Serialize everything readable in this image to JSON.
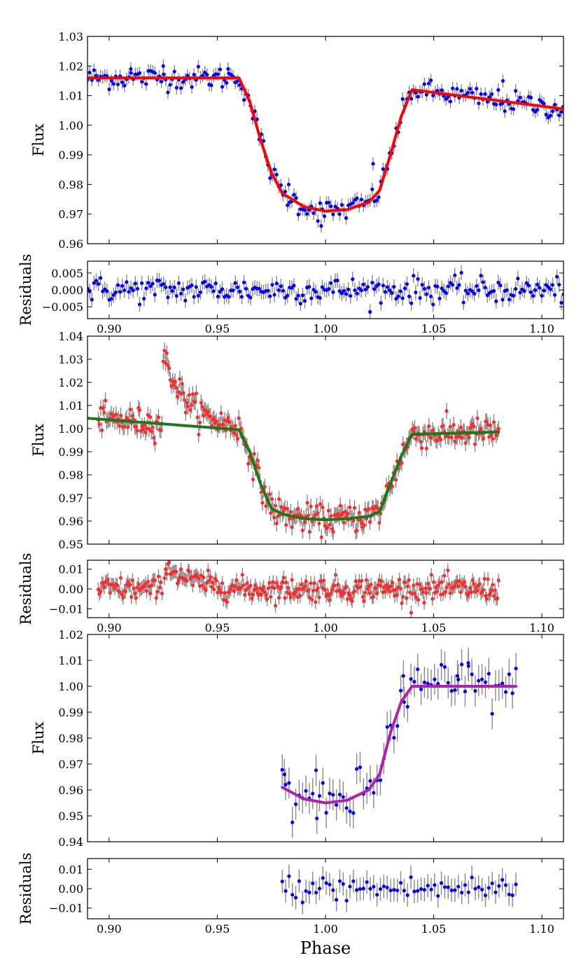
{
  "figure": {
    "x_axis_label": "Phase",
    "x_ticks": [
      "0.90",
      "0.95",
      "1.00",
      "1.05",
      "1.10"
    ]
  },
  "chart_data": [
    {
      "type": "scatter",
      "panel": "flux-1",
      "ylabel": "Flux",
      "xlim": [
        0.89,
        1.11
      ],
      "ylim": [
        0.96,
        1.03
      ],
      "yticks": [
        "0.96",
        "0.97",
        "0.98",
        "0.99",
        "1.00",
        "1.01",
        "1.02",
        "1.03"
      ],
      "xticks_shown": false,
      "points_color": "#0000ff",
      "errorbar_color": "#888888",
      "model_color": "#ff0000",
      "model": {
        "x": [
          0.89,
          0.96,
          0.965,
          0.97,
          0.975,
          0.98,
          0.99,
          1.0,
          1.01,
          1.02,
          1.025,
          1.03,
          1.035,
          1.04,
          1.11
        ],
        "y": [
          1.016,
          1.016,
          1.008,
          0.995,
          0.984,
          0.977,
          0.9725,
          0.971,
          0.9715,
          0.974,
          0.978,
          0.99,
          1.003,
          1.012,
          1.0055
        ]
      },
      "data": {
        "x_start": 0.89,
        "x_end": 1.11,
        "n": 220,
        "yerr": 0.0022,
        "outliers": [
          {
            "x": 0.91,
            "y": 1.019
          },
          {
            "x": 0.925,
            "y": 1.02
          },
          {
            "x": 0.955,
            "y": 1.019
          },
          {
            "x": 0.983,
            "y": 0.98
          },
          {
            "x": 0.998,
            "y": 0.966
          },
          {
            "x": 1.022,
            "y": 0.987
          },
          {
            "x": 1.082,
            "y": 1.015
          }
        ]
      }
    },
    {
      "type": "scatter",
      "panel": "residuals-1",
      "ylabel": "Residuals",
      "xlim": [
        0.89,
        1.11
      ],
      "ylim": [
        -0.0085,
        0.0085
      ],
      "yticks": [
        {
          "value": 0.005,
          "label": "0.005"
        },
        {
          "value": 0.0,
          "label": "0.000"
        },
        {
          "value": -0.005,
          "label": "−0.005"
        }
      ],
      "xticks_shown": true,
      "points_color": "#0000ff",
      "errorbar_color": "#888888",
      "data": {
        "x_start": 0.89,
        "x_end": 1.11,
        "n": 220,
        "scatter": 0.0022,
        "yerr": 0.0022
      }
    },
    {
      "type": "scatter",
      "panel": "flux-2",
      "ylabel": "Flux",
      "xlim": [
        0.89,
        1.11
      ],
      "ylim": [
        0.95,
        1.04
      ],
      "yticks": [
        "0.95",
        "0.96",
        "0.97",
        "0.98",
        "0.99",
        "1.00",
        "1.01",
        "1.02",
        "1.03",
        "1.04"
      ],
      "xticks_shown": false,
      "points_color": "#ff2a2a",
      "errorbar_color": "#888888",
      "model_color": "#1a7a1a",
      "model": {
        "x": [
          0.89,
          0.96,
          0.965,
          0.97,
          0.975,
          0.98,
          0.99,
          1.0,
          1.01,
          1.02,
          1.025,
          1.03,
          1.035,
          1.04,
          1.08
        ],
        "y": [
          1.0045,
          0.9995,
          0.99,
          0.976,
          0.9655,
          0.963,
          0.961,
          0.9605,
          0.961,
          0.962,
          0.964,
          0.976,
          0.988,
          0.9975,
          0.9985
        ]
      },
      "data": {
        "x_start": 0.895,
        "x_end": 1.08,
        "n": 340,
        "yerr": 0.0035,
        "bump": {
          "x_from": 0.925,
          "x_to": 0.96,
          "peak": 0.03,
          "base": 0.0
        }
      }
    },
    {
      "type": "scatter",
      "panel": "residuals-2",
      "ylabel": "Residuals",
      "xlim": [
        0.89,
        1.11
      ],
      "ylim": [
        -0.0145,
        0.0145
      ],
      "yticks": [
        {
          "value": 0.01,
          "label": "0.01"
        },
        {
          "value": 0.0,
          "label": "0.00"
        },
        {
          "value": -0.01,
          "label": "−0.01"
        }
      ],
      "xticks_shown": true,
      "points_color": "#ff2a2a",
      "errorbar_color": "#888888",
      "data": {
        "x_start": 0.895,
        "x_end": 1.08,
        "n": 340,
        "scatter": 0.0035,
        "yerr": 0.0035,
        "bump": {
          "x_from": 0.925,
          "x_to": 0.96,
          "peak": 0.014,
          "base": 0.0
        }
      }
    },
    {
      "type": "scatter",
      "panel": "flux-3",
      "ylabel": "Flux",
      "xlim": [
        0.89,
        1.11
      ],
      "ylim": [
        0.94,
        1.02
      ],
      "yticks": [
        "0.94",
        "0.95",
        "0.96",
        "0.97",
        "0.98",
        "0.99",
        "1.00",
        "1.01",
        "1.02"
      ],
      "xticks_shown": false,
      "points_color": "#0000ff",
      "errorbar_color": "#888888",
      "model_color": "#b01fb0",
      "model": {
        "x": [
          0.98,
          0.99,
          1.0,
          1.01,
          1.02,
          1.025,
          1.03,
          1.035,
          1.04,
          1.088
        ],
        "y": [
          0.961,
          0.9565,
          0.955,
          0.956,
          0.96,
          0.966,
          0.982,
          0.994,
          1.0,
          1.0
        ]
      },
      "data": {
        "x_start": 0.98,
        "x_end": 1.088,
        "n": 70,
        "yerr": 0.006,
        "outliers": [
          {
            "x": 0.981,
            "y": 0.966
          },
          {
            "x": 0.996,
            "y": 0.949
          },
          {
            "x": 1.036,
            "y": 1.004
          },
          {
            "x": 1.066,
            "y": 1.009
          },
          {
            "x": 1.061,
            "y": 1.004
          }
        ]
      }
    },
    {
      "type": "scatter",
      "panel": "residuals-3",
      "ylabel": "Residuals",
      "xlim": [
        0.89,
        1.11
      ],
      "ylim": [
        -0.0155,
        0.0155
      ],
      "yticks": [
        {
          "value": 0.01,
          "label": "0.01"
        },
        {
          "value": 0.0,
          "label": "0.00"
        },
        {
          "value": -0.01,
          "label": "−0.01"
        }
      ],
      "xticks_shown": true,
      "points_color": "#0000ff",
      "errorbar_color": "#888888",
      "data": {
        "x_start": 0.98,
        "x_end": 1.088,
        "n": 70,
        "scatter": 0.004,
        "yerr": 0.006
      }
    }
  ]
}
